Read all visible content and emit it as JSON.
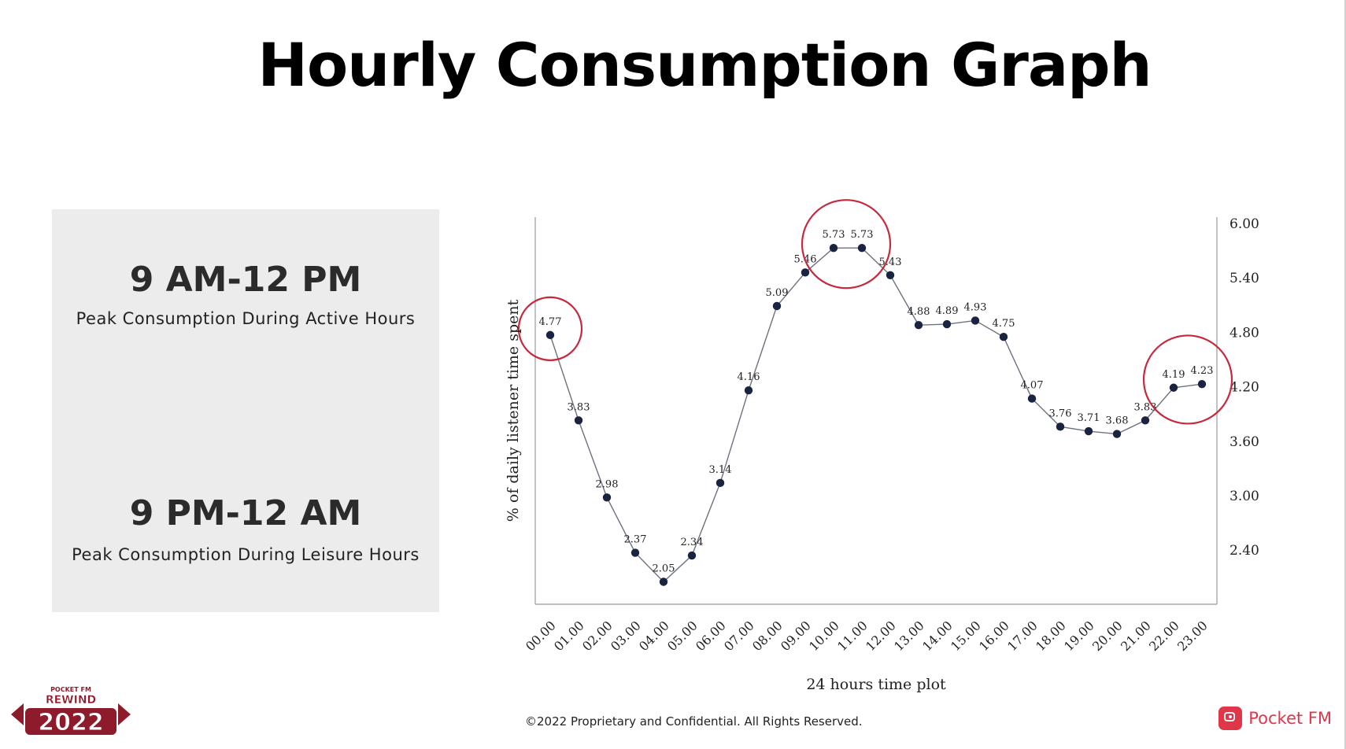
{
  "title": "Hourly Consumption Graph",
  "highlights": [
    {
      "title": "9 AM-12 PM",
      "subtitle": "Peak Consumption During Active Hours"
    },
    {
      "title": "9 PM-12 AM",
      "subtitle": "Peak Consumption During Leisure Hours"
    }
  ],
  "footer": "©2022 Proprietary and Confidential. All Rights Reserved.",
  "brand": {
    "name": "Pocket FM",
    "logo_text_top": "POCKET FM",
    "logo_text_mid": "REWIND",
    "logo_year": "2022"
  },
  "colors": {
    "line": "#6b7280",
    "point": "#1a2440",
    "highlight_circle": "#c8283c",
    "brand": "#e0364a",
    "panel": "#ececec"
  },
  "chart_data": {
    "type": "line",
    "title": "",
    "xlabel": "24 hours time plot",
    "ylabel": "% of daily listener time spent",
    "categories": [
      "00.00",
      "01.00",
      "02.00",
      "03.00",
      "04.00",
      "05.00",
      "06.00",
      "07.00",
      "08.00",
      "09.00",
      "10.00",
      "11.00",
      "12.00",
      "13.00",
      "14.00",
      "15.00",
      "16.00",
      "17.00",
      "18.00",
      "19.00",
      "20.00",
      "21.00",
      "22.00",
      "23.00"
    ],
    "values": [
      4.77,
      3.83,
      2.98,
      2.37,
      2.05,
      2.34,
      3.14,
      4.16,
      5.09,
      5.46,
      5.73,
      5.73,
      5.43,
      4.88,
      4.89,
      4.93,
      4.75,
      4.07,
      3.76,
      3.71,
      3.68,
      3.83,
      4.19,
      4.23
    ],
    "y_ticks": [
      "6.00",
      "5.40",
      "4.80",
      "4.20",
      "3.60",
      "3.00",
      "2.40"
    ],
    "y_axis_side": "right",
    "highlighted_ranges": [
      [
        0,
        0
      ],
      [
        10,
        11
      ],
      [
        22,
        23
      ]
    ]
  }
}
